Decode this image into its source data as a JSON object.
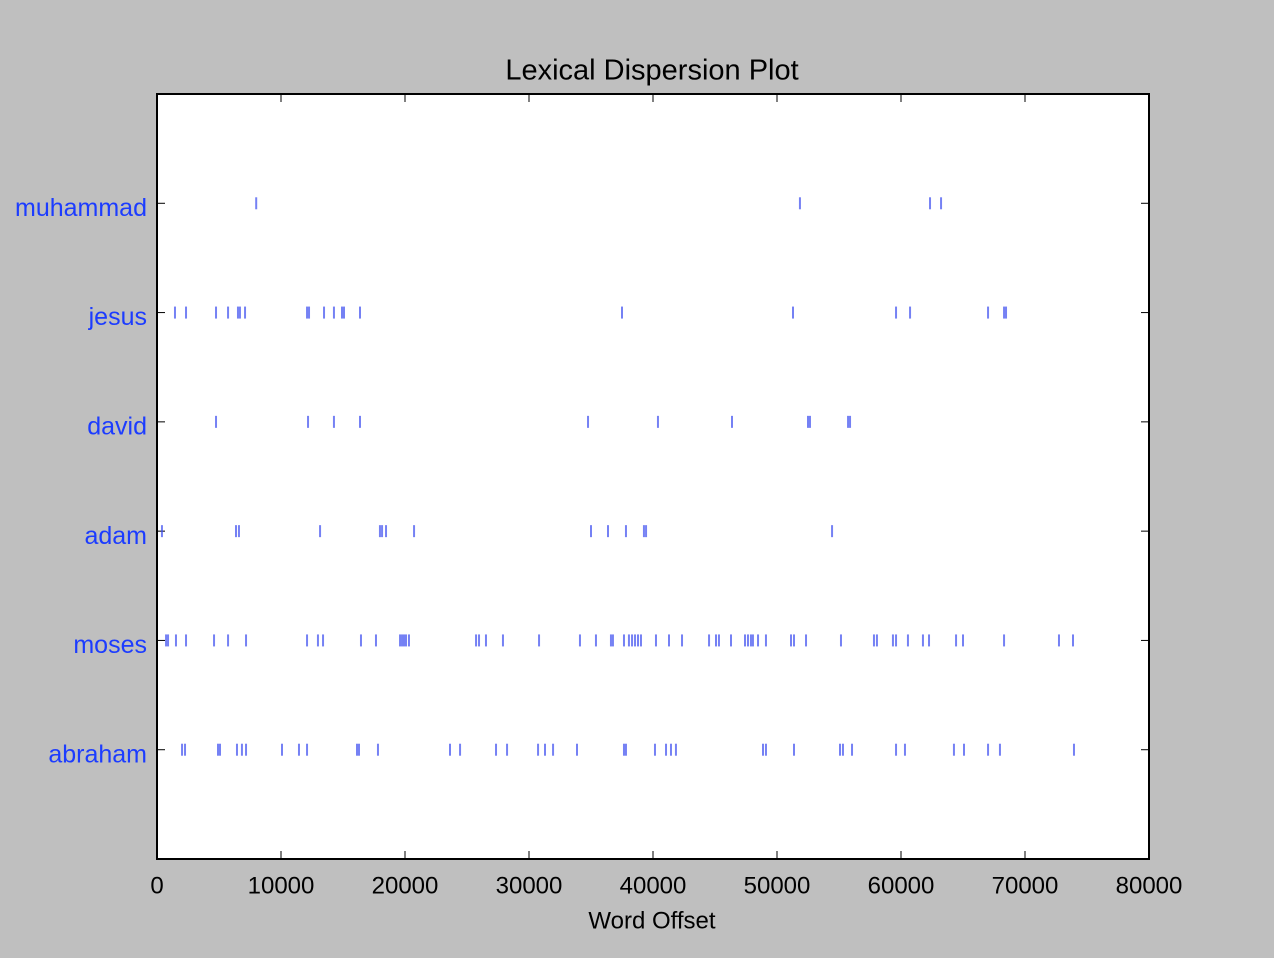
{
  "chart_data": {
    "type": "dispersion",
    "title": "Lexical Dispersion Plot",
    "x_label": "Word Offset",
    "xlim": [
      0,
      80000
    ],
    "xticks": [
      0,
      10000,
      20000,
      30000,
      40000,
      50000,
      60000,
      70000,
      80000
    ],
    "color": "#3b4cf0",
    "label_color": "#1c3cff",
    "series": [
      {
        "name": "muhammad",
        "values": [
          8000,
          51850,
          62340,
          63230
        ]
      },
      {
        "name": "jesus",
        "values": [
          1450,
          2340,
          4760,
          5730,
          6530,
          6690,
          7100,
          12100,
          12260,
          13470,
          14270,
          14920,
          15080,
          16370,
          37500,
          51290,
          59600,
          60730,
          67020,
          68310,
          68470
        ]
      },
      {
        "name": "david",
        "values": [
          4760,
          12180,
          14270,
          16370,
          34760,
          40400,
          46370,
          52500,
          52660,
          55730,
          55890
        ]
      },
      {
        "name": "adam",
        "values": [
          400,
          6370,
          6610,
          13150,
          17980,
          18150,
          18470,
          20730,
          35000,
          36370,
          37820,
          39270,
          39440,
          54440
        ]
      },
      {
        "name": "moses",
        "values": [
          730,
          890,
          1530,
          2340,
          4600,
          5730,
          7180,
          12100,
          12980,
          13390,
          16450,
          17660,
          19600,
          19760,
          19920,
          20080,
          20320,
          25730,
          25970,
          26530,
          27900,
          30810,
          34110,
          35400,
          36610,
          36770,
          37660,
          38060,
          38310,
          38550,
          38790,
          39030,
          40240,
          41290,
          42340,
          44520,
          45080,
          45320,
          46290,
          47420,
          47660,
          47900,
          48060,
          48470,
          49110,
          51130,
          51370,
          52340,
          55160,
          57820,
          58060,
          59350,
          59600,
          60560,
          61770,
          62260,
          64440,
          65000,
          68310,
          72740,
          73870
        ]
      },
      {
        "name": "abraham",
        "values": [
          2020,
          2260,
          4920,
          5080,
          6450,
          6850,
          7180,
          10080,
          11450,
          12100,
          16130,
          16290,
          17820,
          23630,
          24440,
          27340,
          28230,
          30730,
          31290,
          31940,
          33870,
          37660,
          37820,
          40160,
          41050,
          41450,
          41850,
          48870,
          49110,
          51370,
          55080,
          55320,
          56050,
          59600,
          60320,
          64270,
          65080,
          67020,
          67980,
          73950
        ]
      }
    ]
  }
}
